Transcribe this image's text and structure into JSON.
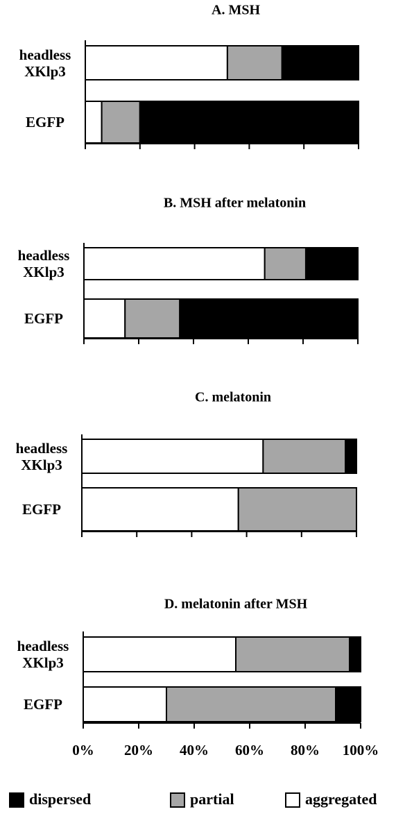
{
  "legend": {
    "position": "bottom",
    "entries": [
      {
        "name": "dispersed",
        "color": "#000000"
      },
      {
        "name": "partial",
        "color": "#a6a6a6"
      },
      {
        "name": "aggregated",
        "color": "#ffffff"
      }
    ]
  },
  "chart_data": [
    {
      "type": "bar",
      "orientation": "horizontal",
      "stacked": true,
      "title": "A. MSH",
      "categories": [
        "headless XKlp3",
        "EGFP"
      ],
      "series": [
        {
          "values": [
            28,
            80
          ]
        },
        {
          "values": [
            20,
            14
          ]
        },
        {
          "values": [
            52,
            6
          ]
        }
      ],
      "xlim": [
        0,
        100
      ],
      "xticks": [
        0,
        20,
        40,
        60,
        80,
        100
      ]
    },
    {
      "type": "bar",
      "orientation": "horizontal",
      "stacked": true,
      "title": "B. MSH after melatonin",
      "categories": [
        "headless XKlp3",
        "EGFP"
      ],
      "series": [
        {
          "values": [
            19,
            65
          ]
        },
        {
          "values": [
            15,
            20
          ]
        },
        {
          "values": [
            66,
            15
          ]
        }
      ],
      "xlim": [
        0,
        100
      ],
      "xticks": [
        0,
        20,
        40,
        60,
        80,
        100
      ]
    },
    {
      "type": "bar",
      "orientation": "horizontal",
      "stacked": true,
      "title": "C. melatonin",
      "categories": [
        "headless XKlp3",
        "EGFP"
      ],
      "series": [
        {
          "values": [
            4,
            0
          ]
        },
        {
          "values": [
            30,
            43
          ]
        },
        {
          "values": [
            66,
            57
          ]
        }
      ],
      "xlim": [
        0,
        100
      ],
      "xticks": [
        0,
        20,
        40,
        60,
        80,
        100
      ]
    },
    {
      "type": "bar",
      "orientation": "horizontal",
      "stacked": true,
      "title": "D. melatonin  after MSH",
      "categories": [
        "headless XKlp3",
        "EGFP"
      ],
      "series": [
        {
          "values": [
            4,
            9
          ]
        },
        {
          "values": [
            41,
            61
          ]
        },
        {
          "values": [
            55,
            30
          ]
        }
      ],
      "xlim": [
        0,
        100
      ],
      "xticks": [
        {
          "value": 0,
          "label": "0%"
        },
        {
          "value": 20,
          "label": "20%"
        },
        {
          "value": 40,
          "label": "40%"
        },
        {
          "value": 60,
          "label": "60%"
        },
        {
          "value": 80,
          "label": "80%"
        },
        {
          "value": 100,
          "label": "100%"
        }
      ]
    }
  ]
}
